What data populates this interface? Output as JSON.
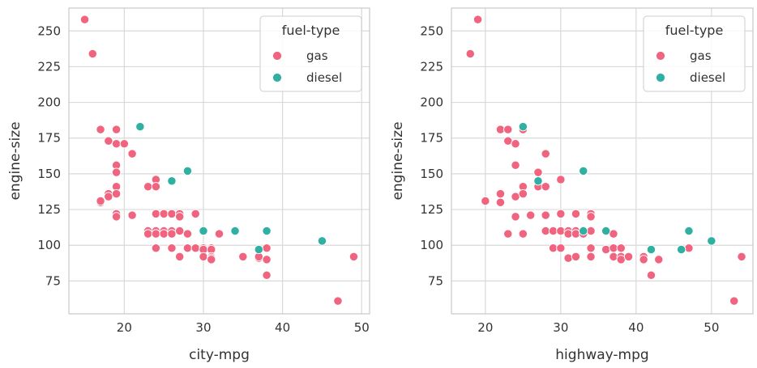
{
  "chart_data": [
    {
      "type": "scatter",
      "xlabel": "city-mpg",
      "ylabel": "engine-size",
      "xlim": [
        13,
        51
      ],
      "ylim": [
        52,
        266
      ],
      "xticks": [
        20,
        30,
        40,
        50
      ],
      "yticks": [
        75,
        100,
        125,
        150,
        175,
        200,
        225,
        250
      ],
      "grid": true,
      "legend": {
        "title": "fuel-type",
        "placement": "top-right"
      },
      "series": [
        {
          "name": "gas",
          "color": "#f0647f",
          "points": [
            [
              15,
              258
            ],
            [
              16,
              234
            ],
            [
              17,
              181
            ],
            [
              17,
              130
            ],
            [
              17,
              131
            ],
            [
              18,
              173
            ],
            [
              18,
              136
            ],
            [
              18,
              134
            ],
            [
              19,
              181
            ],
            [
              19,
              171
            ],
            [
              19,
              156
            ],
            [
              19,
              151
            ],
            [
              19,
              141
            ],
            [
              19,
              136
            ],
            [
              19,
              122
            ],
            [
              19,
              120
            ],
            [
              20,
              171
            ],
            [
              21,
              164
            ],
            [
              21,
              121
            ],
            [
              23,
              141
            ],
            [
              23,
              110
            ],
            [
              23,
              108
            ],
            [
              24,
              146
            ],
            [
              24,
              141
            ],
            [
              24,
              122
            ],
            [
              24,
              110
            ],
            [
              24,
              108
            ],
            [
              24,
              98
            ],
            [
              25,
              122
            ],
            [
              25,
              110
            ],
            [
              25,
              108
            ],
            [
              26,
              122
            ],
            [
              26,
              110
            ],
            [
              26,
              108
            ],
            [
              26,
              98
            ],
            [
              27,
              122
            ],
            [
              27,
              120
            ],
            [
              27,
              110
            ],
            [
              27,
              92
            ],
            [
              28,
              108
            ],
            [
              28,
              98
            ],
            [
              29,
              122
            ],
            [
              29,
              98
            ],
            [
              30,
              98
            ],
            [
              30,
              97
            ],
            [
              30,
              92
            ],
            [
              31,
              98
            ],
            [
              31,
              97
            ],
            [
              31,
              92
            ],
            [
              31,
              91
            ],
            [
              31,
              90
            ],
            [
              32,
              108
            ],
            [
              35,
              92
            ],
            [
              37,
              91
            ],
            [
              37,
              92
            ],
            [
              38,
              98
            ],
            [
              38,
              90
            ],
            [
              38,
              79
            ],
            [
              47,
              61
            ],
            [
              49,
              92
            ]
          ]
        },
        {
          "name": "diesel",
          "color": "#30b0a2",
          "points": [
            [
              22,
              183
            ],
            [
              26,
              145
            ],
            [
              28,
              152
            ],
            [
              30,
              110
            ],
            [
              34,
              110
            ],
            [
              37,
              97
            ],
            [
              38,
              110
            ],
            [
              45,
              103
            ]
          ]
        }
      ]
    },
    {
      "type": "scatter",
      "xlabel": "highway-mpg",
      "ylabel": "engine-size",
      "xlim": [
        15.5,
        55.5
      ],
      "ylim": [
        52,
        266
      ],
      "xticks": [
        20,
        30,
        40,
        50
      ],
      "yticks": [
        75,
        100,
        125,
        150,
        175,
        200,
        225,
        250
      ],
      "grid": true,
      "legend": {
        "title": "fuel-type",
        "placement": "top-right"
      },
      "series": [
        {
          "name": "gas",
          "color": "#f0647f",
          "points": [
            [
              18,
              234
            ],
            [
              19,
              258
            ],
            [
              20,
              131
            ],
            [
              22,
              181
            ],
            [
              22,
              136
            ],
            [
              22,
              130
            ],
            [
              23,
              181
            ],
            [
              23,
              173
            ],
            [
              23,
              108
            ],
            [
              24,
              171
            ],
            [
              24,
              156
            ],
            [
              24,
              134
            ],
            [
              24,
              120
            ],
            [
              25,
              181
            ],
            [
              25,
              141
            ],
            [
              25,
              136
            ],
            [
              25,
              108
            ],
            [
              26,
              121
            ],
            [
              27,
              151
            ],
            [
              27,
              141
            ],
            [
              28,
              164
            ],
            [
              28,
              141
            ],
            [
              28,
              121
            ],
            [
              28,
              110
            ],
            [
              29,
              110
            ],
            [
              29,
              98
            ],
            [
              30,
              146
            ],
            [
              30,
              122
            ],
            [
              30,
              110
            ],
            [
              30,
              98
            ],
            [
              31,
              110
            ],
            [
              31,
              108
            ],
            [
              31,
              91
            ],
            [
              32,
              122
            ],
            [
              32,
              110
            ],
            [
              32,
              108
            ],
            [
              32,
              92
            ],
            [
              33,
              110
            ],
            [
              33,
              108
            ],
            [
              34,
              122
            ],
            [
              34,
              120
            ],
            [
              34,
              110
            ],
            [
              34,
              98
            ],
            [
              34,
              92
            ],
            [
              36,
              97
            ],
            [
              37,
              108
            ],
            [
              37,
              98
            ],
            [
              37,
              92
            ],
            [
              38,
              98
            ],
            [
              38,
              92
            ],
            [
              38,
              90
            ],
            [
              39,
              92
            ],
            [
              41,
              92
            ],
            [
              41,
              90
            ],
            [
              42,
              79
            ],
            [
              43,
              90
            ],
            [
              47,
              98
            ],
            [
              53,
              61
            ],
            [
              54,
              92
            ]
          ]
        },
        {
          "name": "diesel",
          "color": "#30b0a2",
          "points": [
            [
              25,
              183
            ],
            [
              27,
              145
            ],
            [
              33,
              152
            ],
            [
              33,
              110
            ],
            [
              36,
              110
            ],
            [
              42,
              97
            ],
            [
              46,
              97
            ],
            [
              47,
              110
            ],
            [
              50,
              103
            ]
          ]
        }
      ]
    }
  ]
}
